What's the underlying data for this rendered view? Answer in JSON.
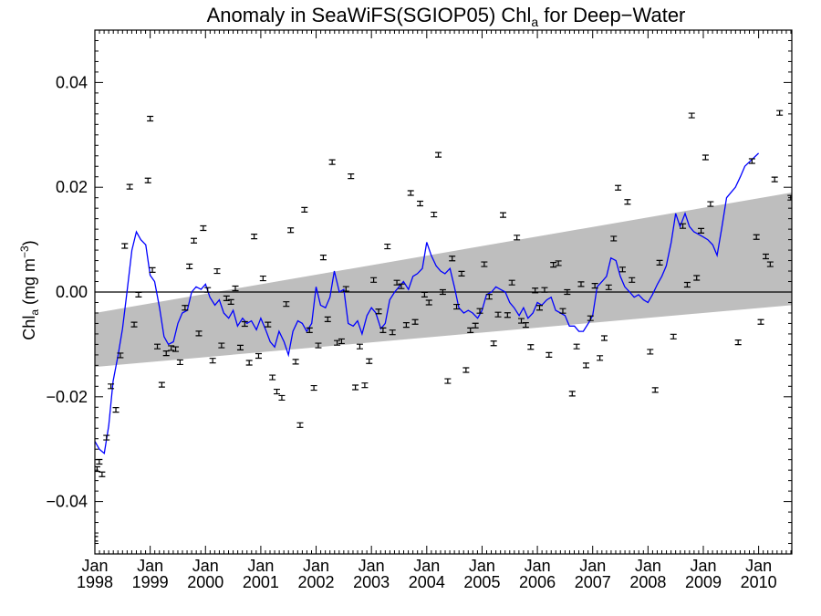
{
  "chart_data": {
    "type": "scatter",
    "title": "Anomaly in SeaWiFS(SGIOP05) Chl",
    "title_sub": "a",
    "title_suffix": " for Deep−Water",
    "ylabel_main": "Chl",
    "ylabel_sub": "a",
    "ylabel_unit": " (mg m",
    "ylabel_sup": "−3",
    "ylabel_end": ")",
    "xlim": [
      1998.0,
      2010.6
    ],
    "ylim": [
      -0.05,
      0.05
    ],
    "yticks": [
      {
        "value": 0.04,
        "label": "0.04"
      },
      {
        "value": 0.02,
        "label": "0.02"
      },
      {
        "value": 0.0,
        "label": "0.00"
      },
      {
        "value": -0.02,
        "label": "−0.02"
      },
      {
        "value": -0.04,
        "label": "−0.04"
      }
    ],
    "xticks": [
      {
        "value": 1998.0,
        "month": "Jan",
        "year": "1998"
      },
      {
        "value": 1999.0,
        "month": "Jan",
        "year": "1999"
      },
      {
        "value": 2000.0,
        "month": "Jan",
        "year": "2000"
      },
      {
        "value": 2001.0,
        "month": "Jan",
        "year": "2001"
      },
      {
        "value": 2002.0,
        "month": "Jan",
        "year": "2002"
      },
      {
        "value": 2003.0,
        "month": "Jan",
        "year": "2003"
      },
      {
        "value": 2004.0,
        "month": "Jan",
        "year": "2004"
      },
      {
        "value": 2005.0,
        "month": "Jan",
        "year": "2005"
      },
      {
        "value": 2006.0,
        "month": "Jan",
        "year": "2006"
      },
      {
        "value": 2007.0,
        "month": "Jan",
        "year": "2007"
      },
      {
        "value": 2008.0,
        "month": "Jan",
        "year": "2008"
      },
      {
        "value": 2009.0,
        "month": "Jan",
        "year": "2009"
      },
      {
        "value": 2010.0,
        "month": "Jan",
        "year": "2010"
      }
    ],
    "zero_line": 0.0,
    "trend_band": {
      "start": {
        "x": 1998.0,
        "lower": -0.0143,
        "upper": -0.004
      },
      "end": {
        "x": 2010.6,
        "lower": -0.0025,
        "upper": 0.019
      }
    },
    "points": [
      [
        1998.0,
        -0.0471
      ],
      [
        1998.04,
        -0.0338
      ],
      [
        1998.08,
        -0.0324
      ],
      [
        1998.13,
        -0.0348
      ],
      [
        1998.21,
        -0.0278
      ],
      [
        1998.29,
        -0.018
      ],
      [
        1998.38,
        -0.0225
      ],
      [
        1998.46,
        -0.0121
      ],
      [
        1998.54,
        0.0088
      ],
      [
        1998.63,
        0.0201
      ],
      [
        1998.71,
        -0.0062
      ],
      [
        1998.79,
        -0.0005
      ],
      [
        1998.96,
        0.0213
      ],
      [
        1999.0,
        0.0331
      ],
      [
        1999.04,
        0.0042
      ],
      [
        1999.13,
        -0.0104
      ],
      [
        1999.21,
        -0.0177
      ],
      [
        1999.29,
        -0.0117
      ],
      [
        1999.38,
        -0.0107
      ],
      [
        1999.46,
        -0.0109
      ],
      [
        1999.54,
        -0.0134
      ],
      [
        1999.63,
        -0.003
      ],
      [
        1999.71,
        0.0049
      ],
      [
        1999.79,
        0.0098
      ],
      [
        1999.88,
        -0.0079
      ],
      [
        1999.96,
        0.0122
      ],
      [
        2000.04,
        0.0004
      ],
      [
        2000.13,
        -0.0131
      ],
      [
        2000.21,
        0.004
      ],
      [
        2000.29,
        -0.0102
      ],
      [
        2000.38,
        -0.0012
      ],
      [
        2000.46,
        -0.0019
      ],
      [
        2000.54,
        0.0007
      ],
      [
        2000.63,
        -0.0106
      ],
      [
        2000.71,
        -0.0061
      ],
      [
        2000.79,
        -0.0135
      ],
      [
        2000.88,
        0.0106
      ],
      [
        2000.96,
        -0.0122
      ],
      [
        2001.04,
        0.0026
      ],
      [
        2001.13,
        -0.0062
      ],
      [
        2001.21,
        -0.0163
      ],
      [
        2001.29,
        -0.019
      ],
      [
        2001.38,
        -0.0202
      ],
      [
        2001.46,
        -0.0023
      ],
      [
        2001.54,
        0.0118
      ],
      [
        2001.63,
        -0.0133
      ],
      [
        2001.71,
        -0.0254
      ],
      [
        2001.79,
        0.0157
      ],
      [
        2001.88,
        -0.0073
      ],
      [
        2001.96,
        -0.0183
      ],
      [
        2002.04,
        -0.0102
      ],
      [
        2002.13,
        0.0066
      ],
      [
        2002.21,
        -0.0052
      ],
      [
        2002.29,
        0.0248
      ],
      [
        2002.38,
        -0.0097
      ],
      [
        2002.46,
        -0.0094
      ],
      [
        2002.54,
        0.0006
      ],
      [
        2002.63,
        0.0221
      ],
      [
        2002.71,
        -0.0182
      ],
      [
        2002.79,
        -0.0104
      ],
      [
        2002.88,
        -0.0178
      ],
      [
        2002.96,
        -0.0132
      ],
      [
        2003.04,
        0.0023
      ],
      [
        2003.13,
        -0.0037
      ],
      [
        2003.21,
        -0.0073
      ],
      [
        2003.29,
        0.0087
      ],
      [
        2003.38,
        -0.0077
      ],
      [
        2003.46,
        0.0018
      ],
      [
        2003.54,
        0.0011
      ],
      [
        2003.63,
        -0.0063
      ],
      [
        2003.71,
        0.0189
      ],
      [
        2003.79,
        -0.0057
      ],
      [
        2003.88,
        0.0169
      ],
      [
        2003.96,
        -0.0005
      ],
      [
        2004.04,
        -0.002
      ],
      [
        2004.13,
        0.0148
      ],
      [
        2004.21,
        0.0262
      ],
      [
        2004.29,
        0.0
      ],
      [
        2004.38,
        -0.017
      ],
      [
        2004.46,
        0.0064
      ],
      [
        2004.54,
        -0.0028
      ],
      [
        2004.63,
        0.0035
      ],
      [
        2004.71,
        -0.0149
      ],
      [
        2004.79,
        -0.0073
      ],
      [
        2004.88,
        -0.0064
      ],
      [
        2004.96,
        -0.0036
      ],
      [
        2005.04,
        0.0053
      ],
      [
        2005.13,
        -0.0009
      ],
      [
        2005.21,
        -0.0098
      ],
      [
        2005.29,
        -0.0043
      ],
      [
        2005.38,
        0.0147
      ],
      [
        2005.46,
        -0.0044
      ],
      [
        2005.54,
        0.0018
      ],
      [
        2005.63,
        0.0104
      ],
      [
        2005.71,
        -0.0055
      ],
      [
        2005.79,
        -0.0063
      ],
      [
        2005.88,
        -0.0105
      ],
      [
        2005.96,
        0.0003
      ],
      [
        2006.04,
        -0.003
      ],
      [
        2006.13,
        0.0004
      ],
      [
        2006.21,
        -0.012
      ],
      [
        2006.29,
        0.0052
      ],
      [
        2006.38,
        0.0055
      ],
      [
        2006.46,
        -0.0036
      ],
      [
        2006.54,
        0.0
      ],
      [
        2006.63,
        -0.0194
      ],
      [
        2006.71,
        -0.0104
      ],
      [
        2006.79,
        0.0015
      ],
      [
        2006.88,
        -0.014
      ],
      [
        2006.96,
        -0.005
      ],
      [
        2007.04,
        0.0012
      ],
      [
        2007.13,
        -0.0126
      ],
      [
        2007.21,
        -0.0088
      ],
      [
        2007.29,
        0.0009
      ],
      [
        2007.38,
        0.0102
      ],
      [
        2007.46,
        0.0199
      ],
      [
        2007.54,
        0.0043
      ],
      [
        2007.63,
        0.0172
      ],
      [
        2007.71,
        0.0023
      ],
      [
        2008.04,
        -0.0114
      ],
      [
        2008.13,
        -0.0187
      ],
      [
        2008.21,
        0.0056
      ],
      [
        2008.46,
        -0.0085
      ],
      [
        2008.63,
        0.0126
      ],
      [
        2008.71,
        0.0014
      ],
      [
        2008.79,
        0.0337
      ],
      [
        2008.88,
        0.0027
      ],
      [
        2008.96,
        0.0117
      ],
      [
        2009.04,
        0.0257
      ],
      [
        2009.13,
        0.0168
      ],
      [
        2009.63,
        -0.0096
      ],
      [
        2009.88,
        0.025
      ],
      [
        2009.96,
        0.0105
      ],
      [
        2010.04,
        -0.0057
      ],
      [
        2010.13,
        0.0068
      ],
      [
        2010.21,
        0.0053
      ],
      [
        2010.29,
        0.0215
      ],
      [
        2010.38,
        0.0342
      ],
      [
        2010.58,
        0.018
      ]
    ],
    "smoothed_line": [
      [
        1998.0,
        -0.0285
      ],
      [
        1998.08,
        -0.03
      ],
      [
        1998.17,
        -0.0308
      ],
      [
        1998.25,
        -0.0255
      ],
      [
        1998.33,
        -0.017
      ],
      [
        1998.42,
        -0.012
      ],
      [
        1998.5,
        -0.007
      ],
      [
        1998.58,
        0.0
      ],
      [
        1998.67,
        0.008
      ],
      [
        1998.75,
        0.0115
      ],
      [
        1998.83,
        0.01
      ],
      [
        1998.92,
        0.009
      ],
      [
        1999.0,
        0.0032
      ],
      [
        1999.08,
        0.002
      ],
      [
        1999.17,
        -0.003
      ],
      [
        1999.25,
        -0.0085
      ],
      [
        1999.33,
        -0.01
      ],
      [
        1999.42,
        -0.0095
      ],
      [
        1999.5,
        -0.006
      ],
      [
        1999.58,
        -0.004
      ],
      [
        1999.67,
        -0.0035
      ],
      [
        1999.75,
        0.0
      ],
      [
        1999.83,
        0.001
      ],
      [
        1999.92,
        0.0005
      ],
      [
        2000.0,
        0.0015
      ],
      [
        2000.08,
        -0.001
      ],
      [
        2000.17,
        -0.0025
      ],
      [
        2000.25,
        -0.0015
      ],
      [
        2000.33,
        -0.004
      ],
      [
        2000.42,
        -0.005
      ],
      [
        2000.5,
        -0.0035
      ],
      [
        2000.58,
        -0.0065
      ],
      [
        2000.67,
        -0.005
      ],
      [
        2000.75,
        -0.006
      ],
      [
        2000.83,
        -0.0055
      ],
      [
        2000.92,
        -0.0072
      ],
      [
        2001.0,
        -0.005
      ],
      [
        2001.08,
        -0.007
      ],
      [
        2001.17,
        -0.0095
      ],
      [
        2001.25,
        -0.0105
      ],
      [
        2001.33,
        -0.0075
      ],
      [
        2001.42,
        -0.0095
      ],
      [
        2001.5,
        -0.012
      ],
      [
        2001.58,
        -0.0075
      ],
      [
        2001.67,
        -0.0055
      ],
      [
        2001.75,
        -0.006
      ],
      [
        2001.83,
        -0.0075
      ],
      [
        2001.92,
        -0.006
      ],
      [
        2002.0,
        0.001
      ],
      [
        2002.08,
        -0.0025
      ],
      [
        2002.17,
        -0.003
      ],
      [
        2002.25,
        -0.001
      ],
      [
        2002.33,
        0.004
      ],
      [
        2002.42,
        0.0
      ],
      [
        2002.5,
        0.0005
      ],
      [
        2002.58,
        -0.006
      ],
      [
        2002.67,
        -0.0065
      ],
      [
        2002.75,
        -0.0055
      ],
      [
        2002.83,
        -0.008
      ],
      [
        2002.92,
        -0.0045
      ],
      [
        2003.0,
        -0.003
      ],
      [
        2003.08,
        -0.004
      ],
      [
        2003.17,
        -0.007
      ],
      [
        2003.25,
        -0.006
      ],
      [
        2003.33,
        -0.0015
      ],
      [
        2003.42,
        0.0
      ],
      [
        2003.5,
        0.001
      ],
      [
        2003.58,
        0.002
      ],
      [
        2003.67,
        0.0005
      ],
      [
        2003.75,
        0.003
      ],
      [
        2003.83,
        0.0035
      ],
      [
        2003.92,
        0.0045
      ],
      [
        2004.0,
        0.0095
      ],
      [
        2004.08,
        0.007
      ],
      [
        2004.17,
        0.005
      ],
      [
        2004.25,
        0.004
      ],
      [
        2004.33,
        0.0035
      ],
      [
        2004.42,
        0.0045
      ],
      [
        2004.5,
        0.001
      ],
      [
        2004.58,
        -0.003
      ],
      [
        2004.67,
        -0.004
      ],
      [
        2004.75,
        -0.0035
      ],
      [
        2004.83,
        -0.004
      ],
      [
        2004.92,
        -0.005
      ],
      [
        2005.0,
        -0.0035
      ],
      [
        2005.08,
        -0.0005
      ],
      [
        2005.17,
        0.0
      ],
      [
        2005.25,
        0.001
      ],
      [
        2005.33,
        0.0005
      ],
      [
        2005.42,
        0.0
      ],
      [
        2005.5,
        -0.002
      ],
      [
        2005.58,
        -0.003
      ],
      [
        2005.67,
        -0.0045
      ],
      [
        2005.75,
        -0.003
      ],
      [
        2005.83,
        -0.005
      ],
      [
        2005.92,
        -0.004
      ],
      [
        2006.0,
        -0.002
      ],
      [
        2006.08,
        -0.0025
      ],
      [
        2006.17,
        -0.0015
      ],
      [
        2006.25,
        -0.001
      ],
      [
        2006.33,
        -0.0035
      ],
      [
        2006.42,
        -0.004
      ],
      [
        2006.5,
        -0.0045
      ],
      [
        2006.58,
        -0.0065
      ],
      [
        2006.67,
        -0.0065
      ],
      [
        2006.75,
        -0.0075
      ],
      [
        2006.83,
        -0.0075
      ],
      [
        2006.92,
        -0.006
      ],
      [
        2007.0,
        -0.0045
      ],
      [
        2007.08,
        0.001
      ],
      [
        2007.17,
        0.002
      ],
      [
        2007.25,
        0.003
      ],
      [
        2007.33,
        0.0065
      ],
      [
        2007.42,
        0.006
      ],
      [
        2007.5,
        0.003
      ],
      [
        2007.58,
        0.001
      ],
      [
        2007.67,
        0.0
      ],
      [
        2007.75,
        -0.001
      ],
      [
        2007.83,
        -0.0005
      ],
      [
        2007.92,
        -0.0015
      ],
      [
        2008.0,
        -0.002
      ],
      [
        2008.08,
        -0.0005
      ],
      [
        2008.17,
        0.0015
      ],
      [
        2008.25,
        0.003
      ],
      [
        2008.33,
        0.005
      ],
      [
        2008.42,
        0.0095
      ],
      [
        2008.5,
        0.015
      ],
      [
        2008.58,
        0.0125
      ],
      [
        2008.67,
        0.015
      ],
      [
        2008.75,
        0.0125
      ],
      [
        2008.83,
        0.0115
      ],
      [
        2008.92,
        0.011
      ],
      [
        2009.0,
        0.0105
      ],
      [
        2009.08,
        0.01
      ],
      [
        2009.17,
        0.009
      ],
      [
        2009.25,
        0.007
      ],
      [
        2009.33,
        0.012
      ],
      [
        2009.42,
        0.018
      ],
      [
        2009.5,
        0.019
      ],
      [
        2009.58,
        0.02
      ],
      [
        2009.67,
        0.022
      ],
      [
        2009.75,
        0.024
      ],
      [
        2010.0,
        0.0265
      ]
    ]
  }
}
